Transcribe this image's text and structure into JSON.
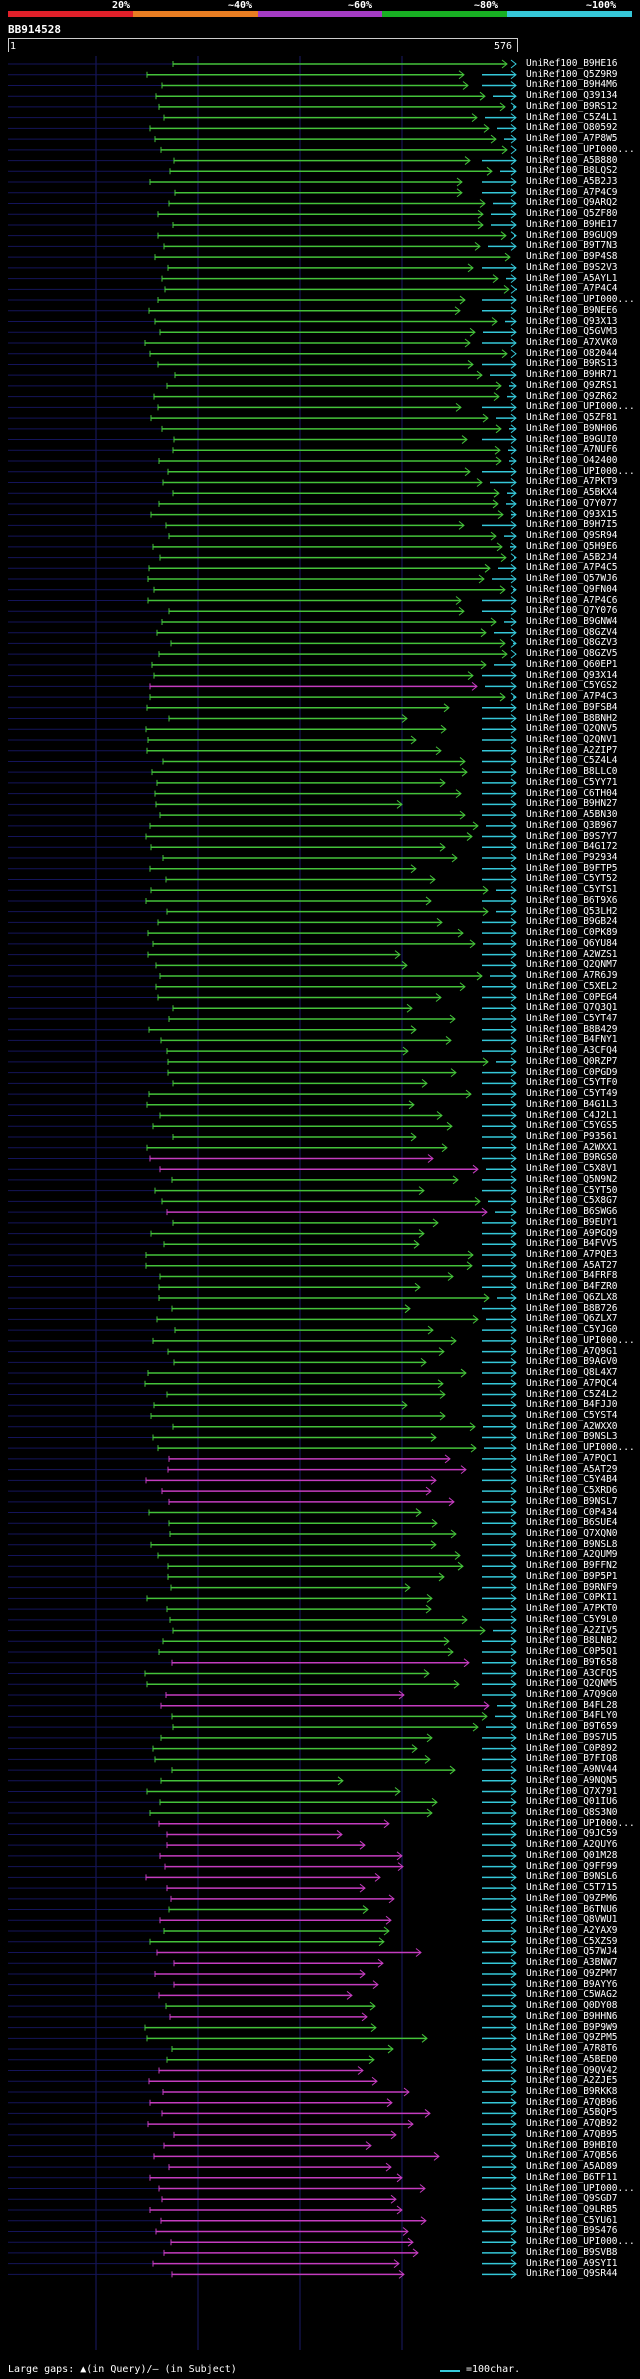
{
  "legend": {
    "labels": [
      "20%",
      "~40%",
      "~60%",
      "~80%",
      "~100%"
    ],
    "colors": [
      "#e0202a",
      "#e87d22",
      "#a53cc4",
      "#18b023",
      "#35c7d8"
    ]
  },
  "query": {
    "name": "BB914528",
    "start": "1",
    "end": "576"
  },
  "footer": {
    "gaps": "Large gaps: ▲(in Query)/– (in Subject)",
    "scale": "=100char."
  },
  "colors": {
    "green": "#44c23a",
    "magenta": "#c43cbf",
    "cyan": "#35c7d8",
    "background": "#000000",
    "gridline": "#1a1a66"
  },
  "hits": [
    "UniRef100_B9HE16",
    "UniRef100_Q5Z9R9",
    "UniRef100_B9H4M6",
    "UniRef100_Q39134",
    "UniRef100_B9RS12",
    "UniRef100_C5Z4L1",
    "UniRef100_O80592",
    "UniRef100_A7P8W5",
    "UniRef100_UPI000...",
    "UniRef100_A5B880",
    "UniRef100_B8LQS2",
    "UniRef100_A5B2J3",
    "UniRef100_A7P4C9",
    "UniRef100_Q9ARQ2",
    "UniRef100_Q5ZF80",
    "UniRef100_B9HE17",
    "UniRef100_B9GUQ9",
    "UniRef100_B9T7N3",
    "UniRef100_B9P4S8",
    "UniRef100_B9S2V3",
    "UniRef100_A5AYL1",
    "UniRef100_A7P4C4",
    "UniRef100_UPI000...",
    "UniRef100_B9NEE6",
    "UniRef100_Q93X13",
    "UniRef100_Q5GVM3",
    "UniRef100_A7XVK0",
    "UniRef100_O82044",
    "UniRef100_B9RS13",
    "UniRef100_B9HR71",
    "UniRef100_Q9ZRS1",
    "UniRef100_Q9ZR62",
    "UniRef100_UPI000...",
    "UniRef100_Q5ZF81",
    "UniRef100_B9NH06",
    "UniRef100_B9GUI0",
    "UniRef100_A7NUF6",
    "UniRef100_O42400",
    "UniRef100_UPI000...",
    "UniRef100_A7PKT9",
    "UniRef100_A5BKX4",
    "UniRef100_Q7Y077",
    "UniRef100_Q93X15",
    "UniRef100_B9H7I5",
    "UniRef100_Q9SR94",
    "UniRef100_Q5H9E6",
    "UniRef100_A5B2J4",
    "UniRef100_A7P4C5",
    "UniRef100_Q57WJ6",
    "UniRef100_Q9FN04",
    "UniRef100_A7P4C6",
    "UniRef100_Q7Y076",
    "UniRef100_B9GNW4",
    "UniRef100_Q8GZV4",
    "UniRef100_Q8GZV3",
    "UniRef100_Q8GZV5",
    "UniRef100_Q60EP1",
    "UniRef100_Q93X14",
    "UniRef100_C5YGS2",
    "UniRef100_A7P4C3",
    "UniRef100_B9FSB4",
    "UniRef100_B8BNH2",
    "UniRef100_Q2QNV5",
    "UniRef100_Q2QNV1",
    "UniRef100_A2ZIP7",
    "UniRef100_C5Z4L4",
    "UniRef100_B8LLC0",
    "UniRef100_C5YY71",
    "UniRef100_C6TH04",
    "UniRef100_B9HN27",
    "UniRef100_A5BN30",
    "UniRef100_Q3B967",
    "UniRef100_B9S7Y7",
    "UniRef100_B4G172",
    "UniRef100_P92934",
    "UniRef100_B9FTP5",
    "UniRef100_C5YT52",
    "UniRef100_C5YTS1",
    "UniRef100_B6T9X6",
    "UniRef100_Q53LH2",
    "UniRef100_B9GB24",
    "UniRef100_C0PK89",
    "UniRef100_Q6YU84",
    "UniRef100_A2WZS1",
    "UniRef100_Q2QNM7",
    "UniRef100_A7R6J9",
    "UniRef100_C5XEL2",
    "UniRef100_C0PEG4",
    "UniRef100_Q7Q3Q1",
    "UniRef100_C5YT47",
    "UniRef100_B8B429",
    "UniRef100_B4FNY1",
    "UniRef100_A3CFQ4",
    "UniRef100_Q0RZP7",
    "UniRef100_C0PGD9",
    "UniRef100_C5YTF0",
    "UniRef100_C5YT49",
    "UniRef100_B4G1L3",
    "UniRef100_C4J2L1",
    "UniRef100_C5YGS5",
    "UniRef100_P93561",
    "UniRef100_A2WXX1",
    "UniRef100_B9RGS0",
    "UniRef100_C5X8V1",
    "UniRef100_Q5N9N2",
    "UniRef100_C5YT50",
    "UniRef100_C5X8G7",
    "UniRef100_B6SWG6",
    "UniRef100_B9EUY1",
    "UniRef100_A9PGQ9",
    "UniRef100_B4FVV5",
    "UniRef100_A7PQE3",
    "UniRef100_A5AT27",
    "UniRef100_B4FRF8",
    "UniRef100_B4FZR0",
    "UniRef100_Q6ZLX8",
    "UniRef100_B8B726",
    "UniRef100_Q6ZLX7",
    "UniRef100_C5YJG0",
    "UniRef100_UPI000...",
    "UniRef100_A7Q9G1",
    "UniRef100_B9AGV0",
    "UniRef100_Q8L4X7",
    "UniRef100_A7PQC4",
    "UniRef100_C5Z4L2",
    "UniRef100_B4FJJ0",
    "UniRef100_C5YST4",
    "UniRef100_A2WXX0",
    "UniRef100_B9NSL3",
    "UniRef100_UPI000...",
    "UniRef100_A7PQC1",
    "UniRef100_A5AT29",
    "UniRef100_C5Y4B4",
    "UniRef100_C5XRD6",
    "UniRef100_B9NSL7",
    "UniRef100_C0P434",
    "UniRef100_B6SUE4",
    "UniRef100_Q7XQN0",
    "UniRef100_B9NSL8",
    "UniRef100_A2QUM9",
    "UniRef100_B9FFN2",
    "UniRef100_B9P5P1",
    "UniRef100_B9RNF9",
    "UniRef100_C0PKI1",
    "UniRef100_A7PKT0",
    "UniRef100_C5Y9L0",
    "UniRef100_A2ZIV5",
    "UniRef100_B8LNB2",
    "UniRef100_C0P5Q1",
    "UniRef100_B9T658",
    "UniRef100_A3CFQ5",
    "UniRef100_Q2QNM5",
    "UniRef100_A7Q9G0",
    "UniRef100_B4FL28",
    "UniRef100_B4FLY0",
    "UniRef100_B9T659",
    "UniRef100_B9S7U5",
    "UniRef100_C0P892",
    "UniRef100_B7FIQ8",
    "UniRef100_A9NV44",
    "UniRef100_A9NQN5",
    "UniRef100_Q7X791",
    "UniRef100_Q01IU6",
    "UniRef100_Q8S3N0",
    "UniRef100_UPI000...",
    "UniRef100_Q9JC59",
    "UniRef100_A2QUY6",
    "UniRef100_Q01M28",
    "UniRef100_Q9FF99",
    "UniRef100_B9NSL6",
    "UniRef100_C5T715",
    "UniRef100_Q9ZPM6",
    "UniRef100_B6TNU6",
    "UniRef100_Q8VWU1",
    "UniRef100_A2YAX9",
    "UniRef100_C5XZS9",
    "UniRef100_Q57WJ4",
    "UniRef100_A3BNW7",
    "UniRef100_Q9ZPM7",
    "UniRef100_B9AYY6",
    "UniRef100_C5WAG2",
    "UniRef100_Q0DY08",
    "UniRef100_B9HHN6",
    "UniRef100_B9P9W9",
    "UniRef100_Q9ZPM5",
    "UniRef100_A7R8T6",
    "UniRef100_A5BED0",
    "UniRef100_Q9QV42",
    "UniRef100_A2ZJE5",
    "UniRef100_B9RKK8",
    "UniRef100_A7QB96",
    "UniRef100_A5BQP5",
    "UniRef100_A7QB92",
    "UniRef100_A7QB95",
    "UniRef100_B9HBI0",
    "UniRef100_A7QB56",
    "UniRef100_A5AD89",
    "UniRef100_B6TF11",
    "UniRef100_UPI000...",
    "UniRef100_Q9SGD7",
    "UniRef100_Q9LRB5",
    "UniRef100_C5YU61",
    "UniRef100_B9S476",
    "UniRef100_UPI000...",
    "UniRef100_B9SVB8",
    "UniRef100_A9SYI1",
    "UniRef100_Q9SR44"
  ]
}
